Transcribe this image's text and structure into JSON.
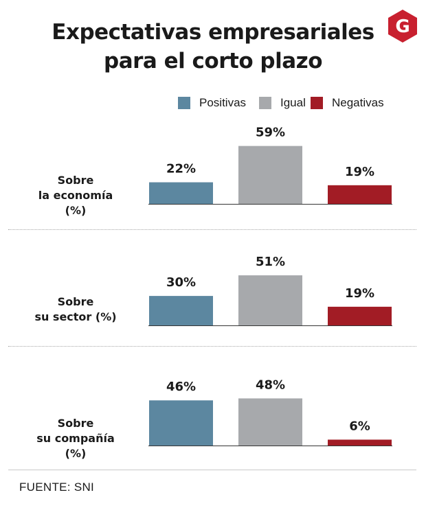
{
  "title_line1": "Expectativas empresariales",
  "title_line2": "para el corto plazo",
  "logo_letter": "G",
  "source": "FUENTE: SNI",
  "chart_data": {
    "type": "bar",
    "title": "Expectativas empresariales para el corto plazo",
    "categories": [
      "Sobre la economía (%)",
      "Sobre su sector (%)",
      "Sobre su compañía (%)"
    ],
    "category_label_lines": [
      [
        "Sobre",
        "la economía (%)"
      ],
      [
        "Sobre",
        "su sector (%)"
      ],
      [
        "Sobre",
        "su compañía (%)"
      ]
    ],
    "series": [
      {
        "name": "Positivas",
        "color": "#5c87a0",
        "values": [
          22,
          30,
          46
        ]
      },
      {
        "name": "Igual",
        "color": "#a7a9ac",
        "values": [
          59,
          51,
          48
        ]
      },
      {
        "name": "Negativas",
        "color": "#a21c25",
        "values": [
          19,
          19,
          6
        ]
      }
    ],
    "value_suffix": "%",
    "legend_position": "top-right",
    "xlabel": "",
    "ylabel": "",
    "grid": false
  },
  "colors": {
    "logo": "#c8202f",
    "baseline": "#333333"
  }
}
